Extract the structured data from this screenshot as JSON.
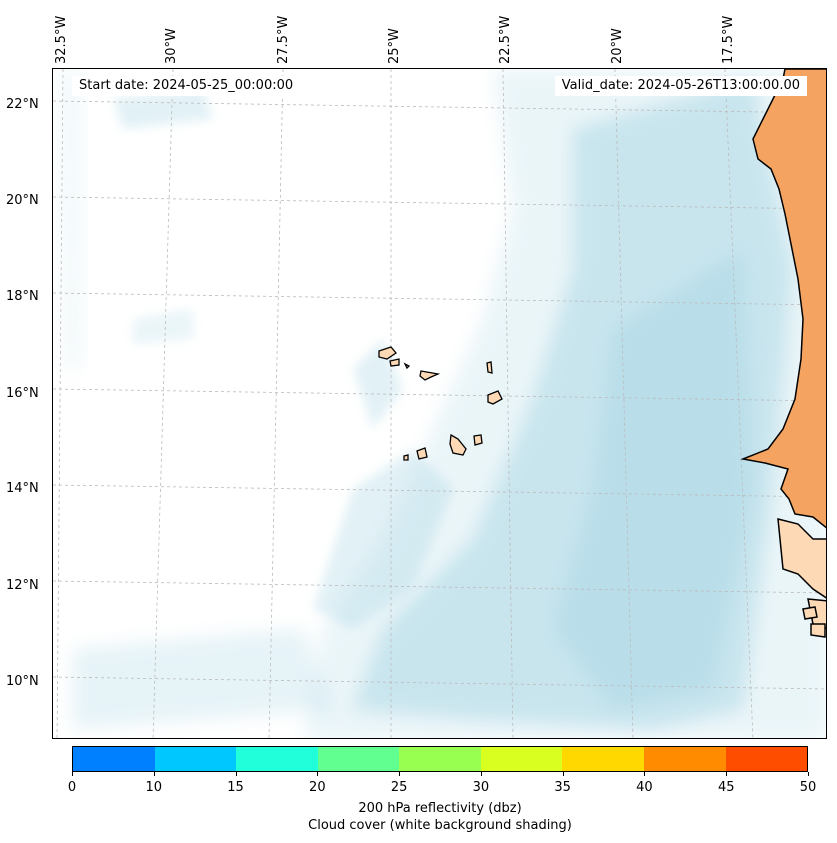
{
  "map": {
    "start_date": "Start date: 2024-05-25_00:00:00",
    "valid_date": "Valid_date: 2024-05-26T13:00:00.00",
    "longitude_labels": [
      "32.5°W",
      "30°W",
      "27.5°W",
      "25°W",
      "22.5°W",
      "20°W",
      "17.5°W"
    ],
    "latitude_labels": [
      "22°N",
      "20°N",
      "18°N",
      "16°N",
      "14°N",
      "12°N",
      "10°N"
    ],
    "land_color": "#f4a460",
    "land_light_color": "#fdd9b5",
    "cloud_color": "#add8e6",
    "gridlines": "dashed"
  },
  "colorbar": {
    "ticks": [
      "0",
      "10",
      "15",
      "20",
      "25",
      "30",
      "35",
      "40",
      "45",
      "50"
    ],
    "colors": [
      "#0080ff",
      "#00c8ff",
      "#20ffd9",
      "#60ff90",
      "#98ff50",
      "#d8ff20",
      "#ffd800",
      "#ff8c00",
      "#ff4d00"
    ],
    "label_line1": "200 hPa reflectivity (dbz)",
    "label_line2": "Cloud cover (white background shading)"
  }
}
